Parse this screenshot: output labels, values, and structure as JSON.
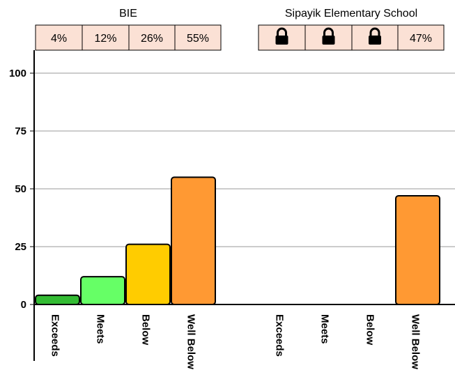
{
  "chart_data": {
    "type": "bar",
    "ylim": [
      0,
      100
    ],
    "y_ticks": [
      0,
      25,
      50,
      75,
      100
    ],
    "y_tick_labels": [
      "0",
      "25",
      "50",
      "75",
      "100"
    ],
    "grid": true,
    "categories": [
      "Exceeds",
      "Meets",
      "Below",
      "Well Below"
    ],
    "category_colors": [
      "#33bb33",
      "#66ff66",
      "#ffcc00",
      "#ff9933"
    ],
    "groups": [
      {
        "name": "BIE",
        "values": [
          4,
          12,
          26,
          55
        ],
        "header_cells": [
          {
            "text": "4%",
            "locked": false
          },
          {
            "text": "12%",
            "locked": false
          },
          {
            "text": "26%",
            "locked": false
          },
          {
            "text": "55%",
            "locked": false
          }
        ]
      },
      {
        "name": "Sipayik Elementary School",
        "values": [
          null,
          null,
          null,
          47
        ],
        "header_cells": [
          {
            "text": "",
            "locked": true,
            "icon": "lock-icon"
          },
          {
            "text": "",
            "locked": true,
            "icon": "lock-icon"
          },
          {
            "text": "",
            "locked": true,
            "icon": "lock-icon"
          },
          {
            "text": "47%",
            "locked": false
          }
        ]
      }
    ]
  }
}
